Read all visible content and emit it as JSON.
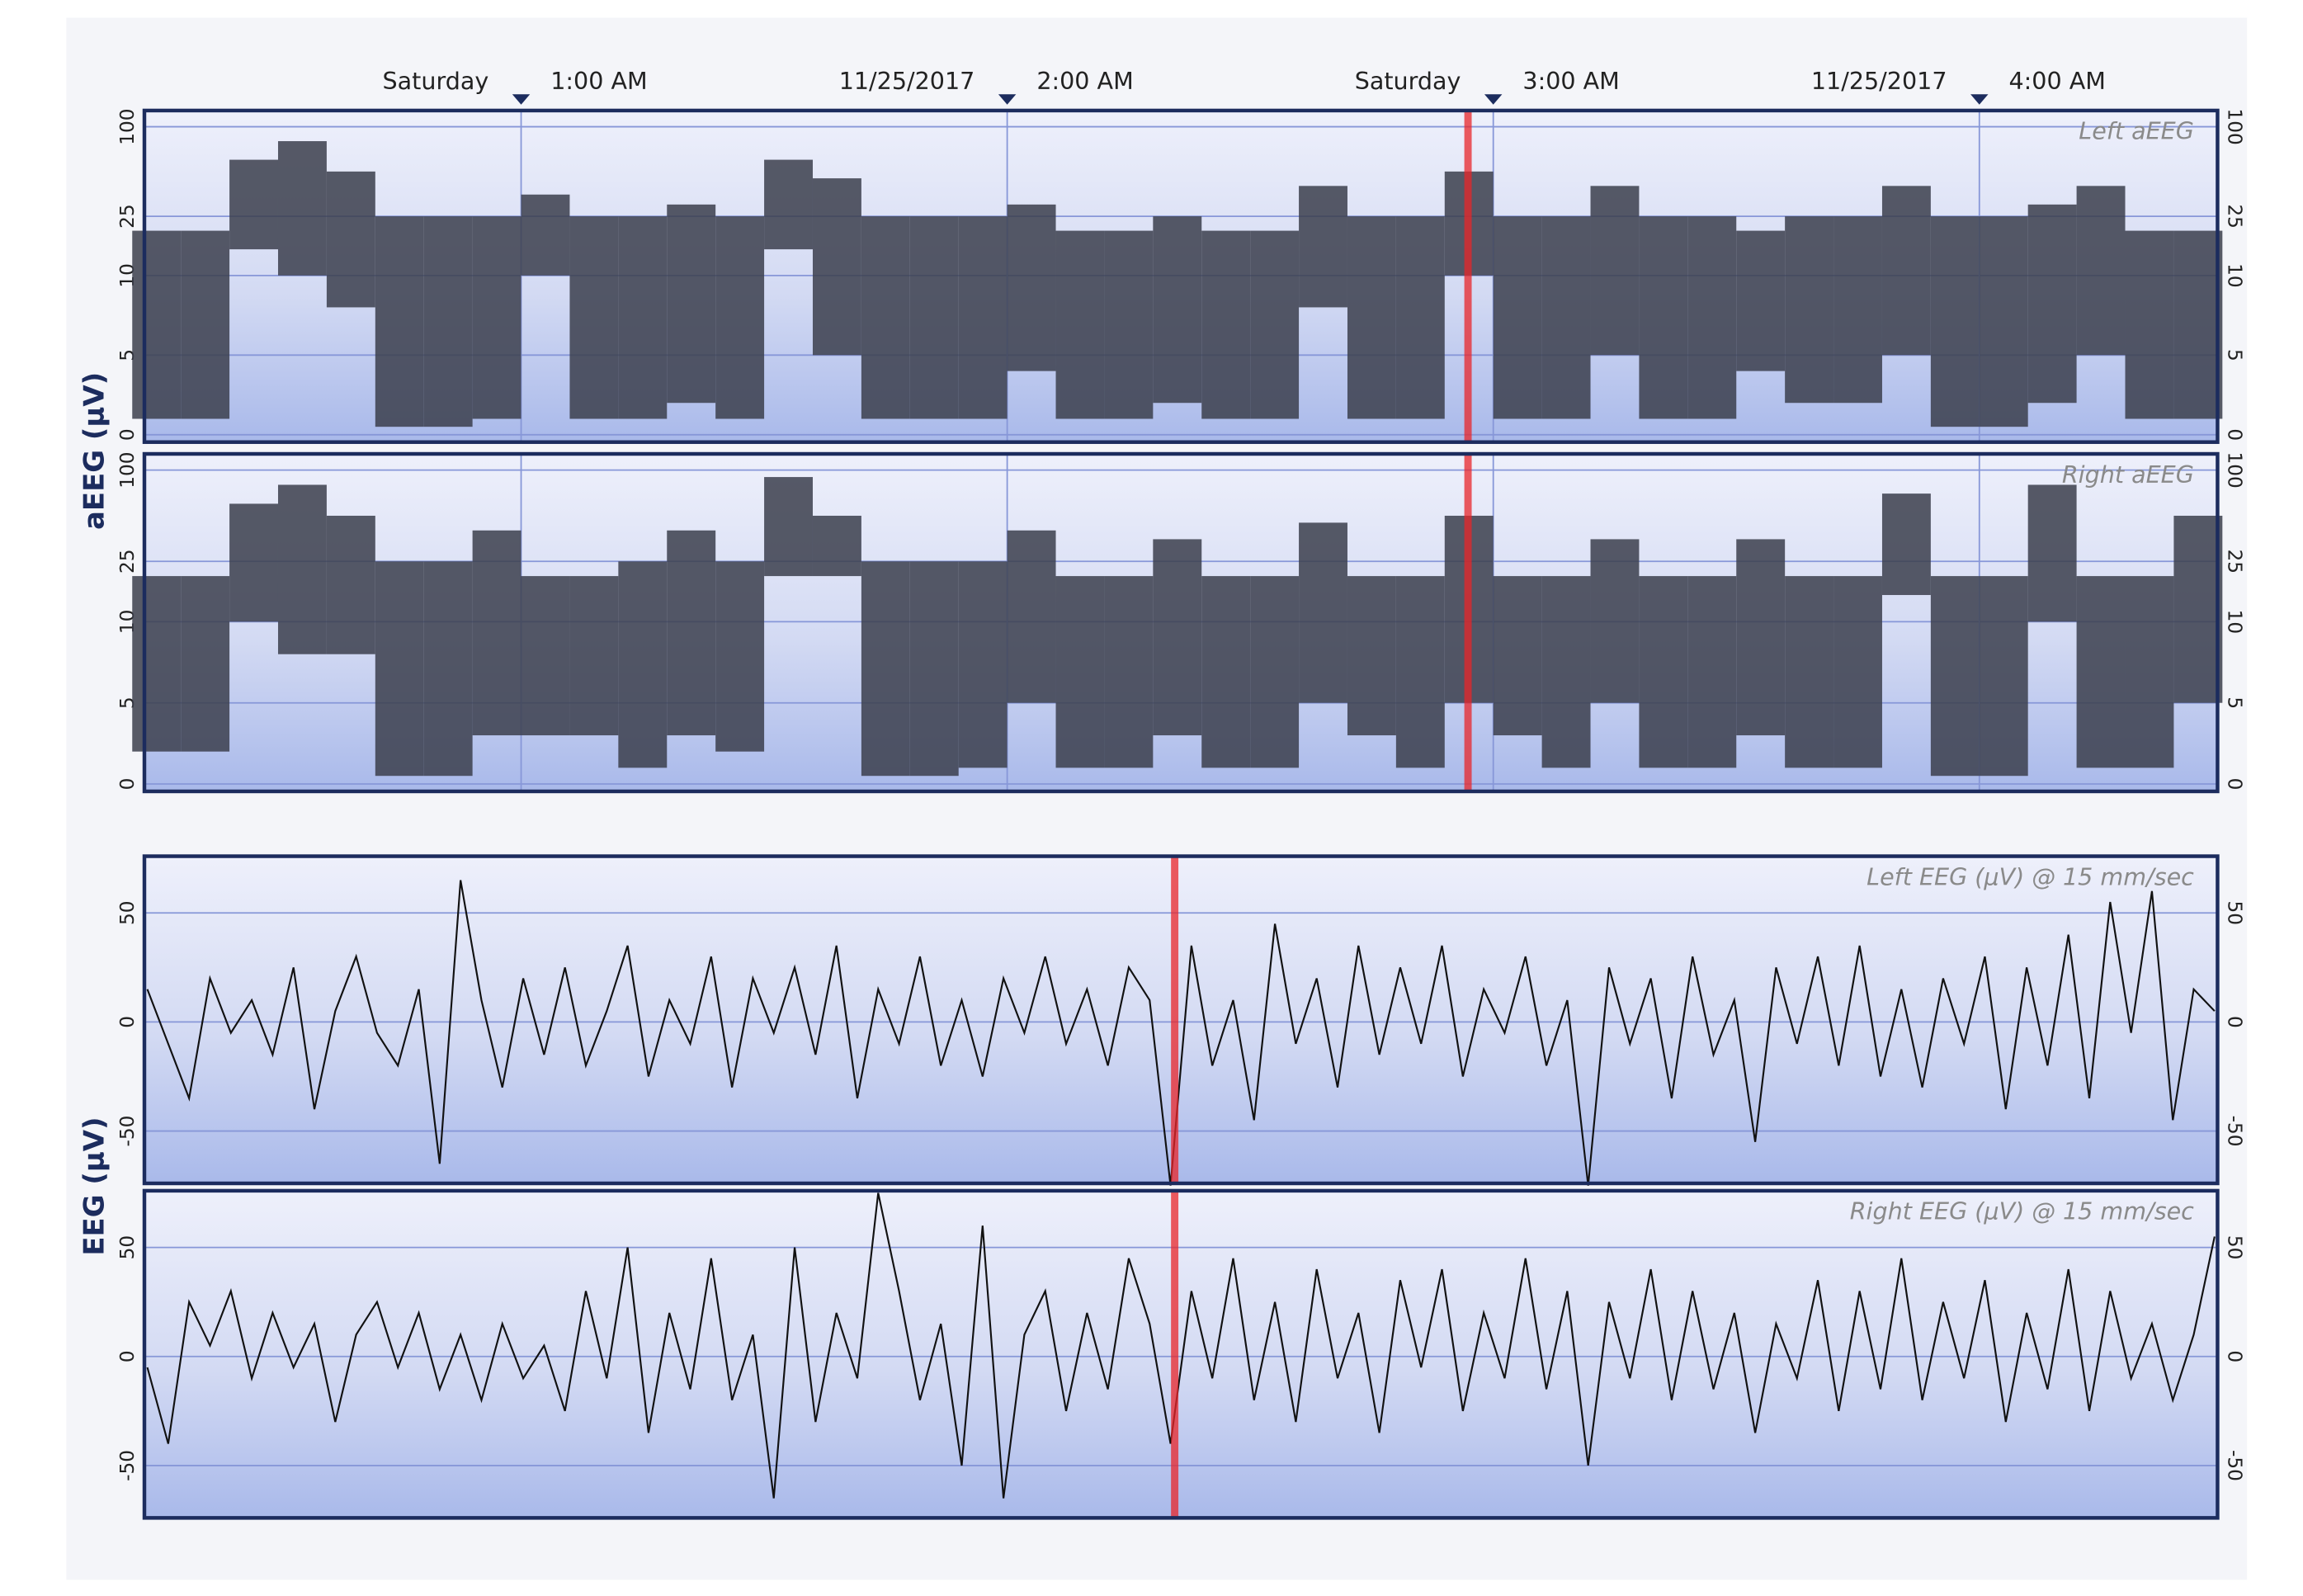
{
  "chart_data": [
    {
      "type": "aeeg",
      "label": "Left aEEG",
      "ylabel": "aEEG (µV)",
      "xlim": [
        0.225,
        4.49
      ],
      "xticks": [
        {
          "value": 1,
          "label": "1:00 AM"
        },
        {
          "value": 2,
          "label": "2:00 AM"
        },
        {
          "value": 3,
          "label": "3:00 AM"
        },
        {
          "value": 4,
          "label": "4:00 AM"
        }
      ],
      "xtick_dates": [
        "Saturday",
        "11/25/2017",
        "Saturday",
        "11/25/2017"
      ],
      "ylim": [
        0,
        100
      ],
      "yticks": [
        0,
        5,
        10,
        25,
        100
      ],
      "ylog_from": 10,
      "x": [
        0.25,
        0.35,
        0.45,
        0.55,
        0.65,
        0.75,
        0.85,
        0.95,
        1.05,
        1.15,
        1.25,
        1.35,
        1.45,
        1.55,
        1.65,
        1.75,
        1.85,
        1.95,
        2.05,
        2.15,
        2.25,
        2.35,
        2.45,
        2.55,
        2.65,
        2.75,
        2.85,
        2.95,
        3.05,
        3.15,
        3.25,
        3.35,
        3.45,
        3.55,
        3.65,
        3.75,
        3.85,
        3.95,
        4.05,
        4.15,
        4.25,
        4.35,
        4.45
      ],
      "upper": [
        20,
        20,
        60,
        80,
        50,
        25,
        25,
        25,
        35,
        25,
        25,
        30,
        25,
        60,
        45,
        25,
        25,
        25,
        30,
        20,
        20,
        25,
        20,
        20,
        40,
        25,
        25,
        50,
        25,
        25,
        40,
        25,
        25,
        20,
        25,
        25,
        40,
        25,
        25,
        30,
        40,
        20,
        20
      ],
      "lower": [
        1,
        1,
        15,
        10,
        8,
        0.5,
        0.5,
        1,
        10,
        1,
        1,
        2,
        1,
        15,
        5,
        1,
        1,
        1,
        4,
        1,
        1,
        2,
        1,
        1,
        8,
        1,
        1,
        10,
        1,
        1,
        5,
        1,
        1,
        4,
        2,
        2,
        5,
        0.5,
        0.5,
        2,
        5,
        1,
        1
      ],
      "color": "#3b3e4c",
      "cursor": 2.948,
      "cursor_color": "#e8262a"
    },
    {
      "type": "aeeg",
      "label": "Right aEEG",
      "xlim": [
        0.225,
        4.49
      ],
      "ylim": [
        0,
        100
      ],
      "yticks": [
        0,
        5,
        10,
        25,
        100
      ],
      "ylog_from": 10,
      "x": [
        0.25,
        0.35,
        0.45,
        0.55,
        0.65,
        0.75,
        0.85,
        0.95,
        1.05,
        1.15,
        1.25,
        1.35,
        1.45,
        1.55,
        1.65,
        1.75,
        1.85,
        1.95,
        2.05,
        2.15,
        2.25,
        2.35,
        2.45,
        2.55,
        2.65,
        2.75,
        2.85,
        2.95,
        3.05,
        3.15,
        3.25,
        3.35,
        3.45,
        3.55,
        3.65,
        3.75,
        3.85,
        3.95,
        4.05,
        4.15,
        4.25,
        4.35,
        4.45
      ],
      "upper": [
        20,
        20,
        60,
        80,
        50,
        25,
        25,
        40,
        20,
        20,
        25,
        40,
        25,
        90,
        50,
        25,
        25,
        25,
        40,
        20,
        20,
        35,
        20,
        20,
        45,
        20,
        20,
        50,
        20,
        20,
        35,
        20,
        20,
        35,
        20,
        20,
        70,
        20,
        20,
        80,
        20,
        20,
        50
      ],
      "lower": [
        2,
        2,
        10,
        8,
        8,
        0.5,
        0.5,
        3,
        3,
        3,
        1,
        3,
        2,
        20,
        20,
        0.5,
        0.5,
        1,
        5,
        1,
        1,
        3,
        1,
        1,
        5,
        3,
        1,
        5,
        3,
        1,
        5,
        1,
        1,
        3,
        1,
        1,
        15,
        0.5,
        0.5,
        10,
        1,
        1,
        5
      ],
      "color": "#3b3e4c",
      "cursor": 2.948,
      "cursor_color": "#e8262a"
    },
    {
      "type": "eeg",
      "label": "Left EEG  (µV) @ 15 mm/sec",
      "ylabel": "EEG (µV)",
      "ylim": [
        -74,
        76
      ],
      "yticks": [
        -50,
        0,
        50
      ],
      "values": [
        15,
        -10,
        -35,
        20,
        -5,
        10,
        -15,
        25,
        -40,
        5,
        30,
        -5,
        -20,
        15,
        -65,
        65,
        10,
        -30,
        20,
        -15,
        25,
        -20,
        5,
        35,
        -25,
        10,
        -10,
        30,
        -30,
        20,
        -5,
        25,
        -15,
        35,
        -35,
        15,
        -10,
        30,
        -20,
        10,
        -25,
        20,
        -5,
        30,
        -10,
        15,
        -20,
        25,
        10,
        -75,
        35,
        -20,
        10,
        -45,
        45,
        -10,
        20,
        -30,
        35,
        -15,
        25,
        -10,
        35,
        -25,
        15,
        -5,
        30,
        -20,
        10,
        -75,
        25,
        -10,
        20,
        -35,
        30,
        -15,
        10,
        -55,
        25,
        -10,
        30,
        -20,
        35,
        -25,
        15,
        -30,
        20,
        -10,
        30,
        -40,
        25,
        -20,
        40,
        -35,
        55,
        -5,
        60,
        -45,
        15,
        5
      ],
      "color": "#111111",
      "cursor": 49.2,
      "cursor_color": "#e8262a"
    },
    {
      "type": "eeg",
      "label": "Right EEG (µV) @ 15 mm/sec",
      "ylim": [
        -74,
        76
      ],
      "yticks": [
        -50,
        0,
        50
      ],
      "values": [
        -5,
        -40,
        25,
        5,
        30,
        -10,
        20,
        -5,
        15,
        -30,
        10,
        25,
        -5,
        20,
        -15,
        10,
        -20,
        15,
        -10,
        5,
        -25,
        30,
        -10,
        50,
        -35,
        20,
        -15,
        45,
        -20,
        10,
        -65,
        50,
        -30,
        20,
        -10,
        75,
        30,
        -20,
        15,
        -50,
        60,
        -65,
        10,
        30,
        -25,
        20,
        -15,
        45,
        15,
        -40,
        30,
        -10,
        45,
        -20,
        25,
        -30,
        40,
        -10,
        20,
        -35,
        35,
        -5,
        40,
        -25,
        20,
        -10,
        45,
        -15,
        30,
        -50,
        25,
        -10,
        40,
        -20,
        30,
        -15,
        20,
        -35,
        15,
        -10,
        35,
        -25,
        30,
        -15,
        45,
        -20,
        25,
        -10,
        35,
        -30,
        20,
        -15,
        40,
        -25,
        30,
        -10,
        15,
        -20,
        10,
        55
      ],
      "color": "#111111",
      "cursor": 49.2,
      "cursor_color": "#e8262a"
    }
  ]
}
